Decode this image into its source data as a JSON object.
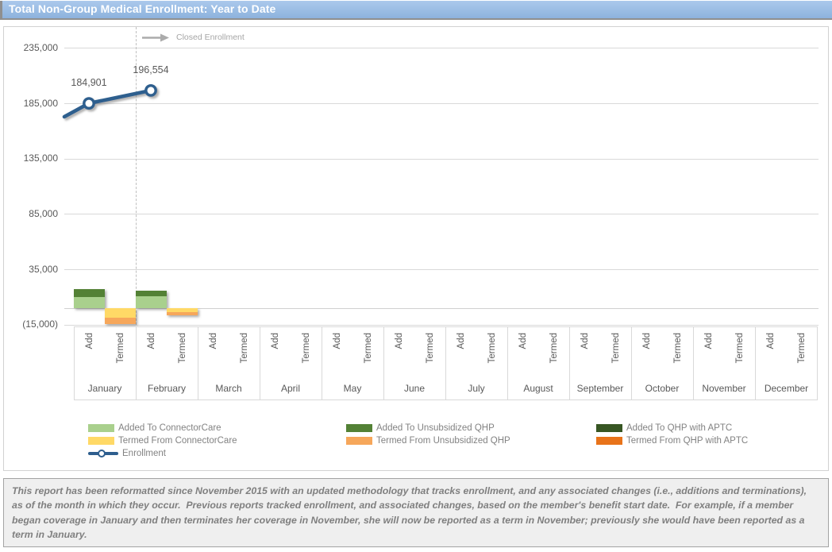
{
  "header": {
    "title": "Total Non-Group Medical Enrollment: Year to Date"
  },
  "chart_data": {
    "type": "combo-stacked-bar-line",
    "title": "Total Non-Group Medical Enrollment: Year to Date",
    "y_axis": {
      "ticks": [
        "235,000",
        "185,000",
        "135,000",
        "85,000",
        "35,000",
        "(15,000)"
      ],
      "tick_values": [
        235000,
        185000,
        135000,
        85000,
        35000,
        -15000
      ],
      "step": 50000,
      "grid": true
    },
    "months": [
      "January",
      "February",
      "March",
      "April",
      "May",
      "June",
      "July",
      "August",
      "September",
      "October",
      "November",
      "December"
    ],
    "sub_categories": [
      "Add",
      "Termed"
    ],
    "annotation": {
      "label": "Closed Enrollment",
      "closed_through_month": "January"
    },
    "bar_series": [
      {
        "name": "Added To ConnectorCare",
        "color": "#a9d08d",
        "direction": "add",
        "values": [
          9700,
          10400,
          0,
          0,
          0,
          0,
          0,
          0,
          0,
          0,
          0,
          0
        ]
      },
      {
        "name": "Added To Unsubsidized QHP",
        "color": "#538135",
        "direction": "add",
        "values": [
          7200,
          5000,
          0,
          0,
          0,
          0,
          0,
          0,
          0,
          0,
          0,
          0
        ]
      },
      {
        "name": "Added To QHP with APTC",
        "color": "#375623",
        "direction": "add",
        "values": [
          0,
          0,
          0,
          0,
          0,
          0,
          0,
          0,
          0,
          0,
          0,
          0
        ]
      },
      {
        "name": "Termed From ConnectorCare",
        "color": "#ffd966",
        "direction": "termed",
        "values": [
          8300,
          3700,
          0,
          0,
          0,
          0,
          0,
          0,
          0,
          0,
          0,
          0
        ]
      },
      {
        "name": "Termed From Unsubsidized QHP",
        "color": "#f6a75b",
        "direction": "termed",
        "values": [
          5700,
          2400,
          0,
          0,
          0,
          0,
          0,
          0,
          0,
          0,
          0,
          0
        ]
      },
      {
        "name": "Termed From QHP with APTC",
        "color": "#e8731a",
        "direction": "termed",
        "values": [
          0,
          0,
          0,
          0,
          0,
          0,
          0,
          0,
          0,
          0,
          0,
          0
        ]
      }
    ],
    "line_series": {
      "name": "Enrollment",
      "color": "#2e5e8e",
      "values": [
        184901,
        196554,
        null,
        null,
        null,
        null,
        null,
        null,
        null,
        null,
        null,
        null
      ],
      "labels": [
        "184,901",
        "196,554"
      ],
      "edge_lead_in_value": 172800
    }
  },
  "legend": {
    "columns": [
      [
        {
          "label": "Added To ConnectorCare",
          "swatch": "box",
          "color": "#a9d08d"
        },
        {
          "label": "Termed From ConnectorCare",
          "swatch": "box",
          "color": "#ffd966"
        },
        {
          "label": "Enrollment",
          "swatch": "line-marker",
          "color": "#2e5e8e"
        }
      ],
      [
        {
          "label": "Added To Unsubsidized QHP",
          "swatch": "box",
          "color": "#538135"
        },
        {
          "label": "Termed From Unsubsidized QHP",
          "swatch": "box",
          "color": "#f6a75b"
        }
      ],
      [
        {
          "label": "Added To QHP with APTC",
          "swatch": "box",
          "color": "#375623"
        },
        {
          "label": "Termed From QHP with APTC",
          "swatch": "box",
          "color": "#e8731a"
        }
      ]
    ]
  },
  "footnote": {
    "text": "This report has been reformatted since November 2015 with an updated methodology that tracks enrollment, and any associated changes (i.e., additions and terminations), as of the month in which they occur.  Previous reports tracked enrollment, and associated changes, based on the member's benefit start date.  For example, if a member began coverage in January and then terminates her coverage in November, she will now be reported as a term in November; previously she would have been reported as a term in January."
  }
}
